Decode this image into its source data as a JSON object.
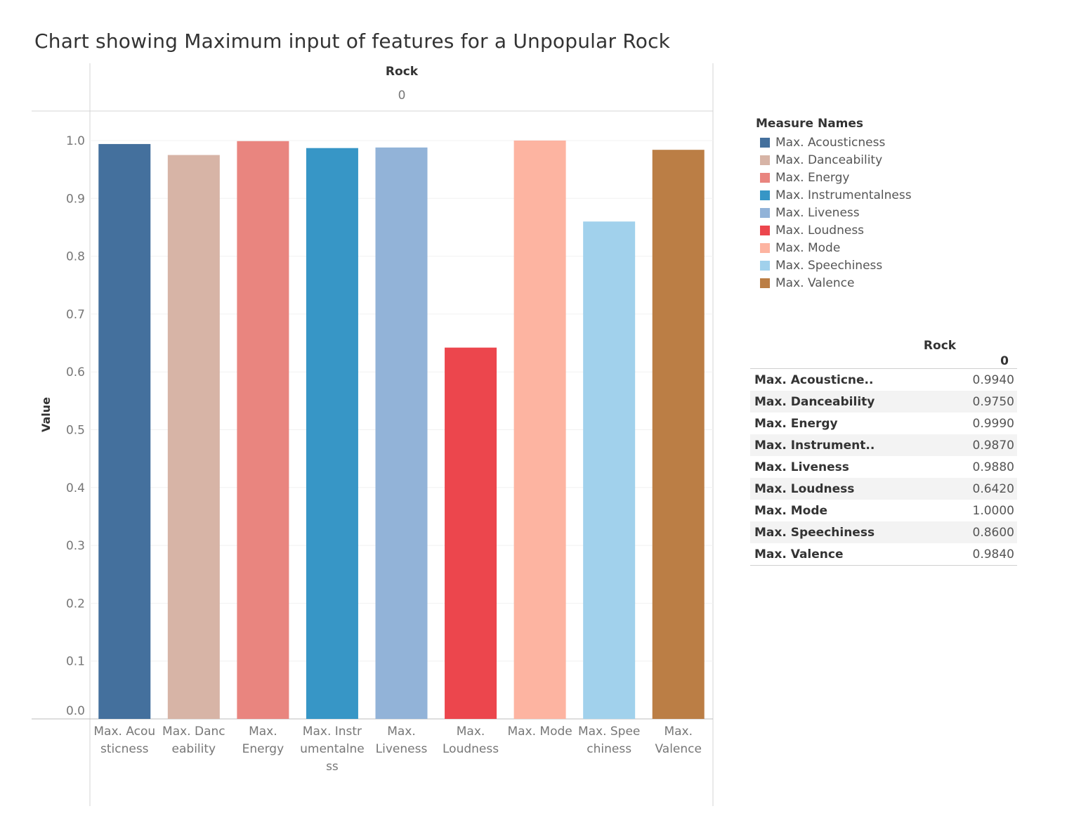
{
  "title": "Chart showing Maximum input of features for a Unpopular Rock",
  "chart_data": {
    "type": "bar",
    "column_header": "Rock",
    "column_subheader": "0",
    "ylabel": "Value",
    "ylim": [
      0,
      1.0
    ],
    "yticks": [
      "0.0",
      "0.1",
      "0.2",
      "0.3",
      "0.4",
      "0.5",
      "0.6",
      "0.7",
      "0.8",
      "0.9",
      "1.0"
    ],
    "categories": [
      "Max. Acousticness",
      "Max. Danceability",
      "Max. Energy",
      "Max. Instrumentalness",
      "Max. Liveness",
      "Max. Loudness",
      "Max. Mode",
      "Max. Speechiness",
      "Max. Valence"
    ],
    "category_tick_labels": [
      [
        "Max. Acou",
        "sticness"
      ],
      [
        "Max. Danc",
        "eability"
      ],
      [
        "Max.",
        "Energy"
      ],
      [
        "Max. Instr",
        "umentalne",
        "ss"
      ],
      [
        "Max.",
        "Liveness"
      ],
      [
        "Max.",
        "Loudness"
      ],
      [
        "Max. Mode"
      ],
      [
        "Max. Spee",
        "chiness"
      ],
      [
        "Max.",
        "Valence"
      ]
    ],
    "values": [
      0.994,
      0.975,
      0.999,
      0.987,
      0.988,
      0.642,
      1.0,
      0.86,
      0.984
    ],
    "colors": [
      "#44709d",
      "#d7b4a6",
      "#e9857f",
      "#3796c6",
      "#92b3d8",
      "#ec464d",
      "#fdb4a1",
      "#a1d1ec",
      "#bb7e45"
    ],
    "grid": true
  },
  "legend": {
    "title": "Measure Names",
    "items": [
      "Max. Acousticness",
      "Max. Danceability",
      "Max. Energy",
      "Max. Instrumentalness",
      "Max. Liveness",
      "Max. Loudness",
      "Max. Mode",
      "Max. Speechiness",
      "Max. Valence"
    ]
  },
  "table": {
    "header": "Rock",
    "subheader": "0",
    "rows": [
      {
        "label": "Max. Acousticne..",
        "value": "0.9940"
      },
      {
        "label": "Max. Danceability",
        "value": "0.9750"
      },
      {
        "label": "Max. Energy",
        "value": "0.9990"
      },
      {
        "label": "Max. Instrument..",
        "value": "0.9870"
      },
      {
        "label": "Max. Liveness",
        "value": "0.9880"
      },
      {
        "label": "Max. Loudness",
        "value": "0.6420"
      },
      {
        "label": "Max. Mode",
        "value": "1.0000"
      },
      {
        "label": "Max. Speechiness",
        "value": "0.8600"
      },
      {
        "label": "Max. Valence",
        "value": "0.9840"
      }
    ]
  }
}
